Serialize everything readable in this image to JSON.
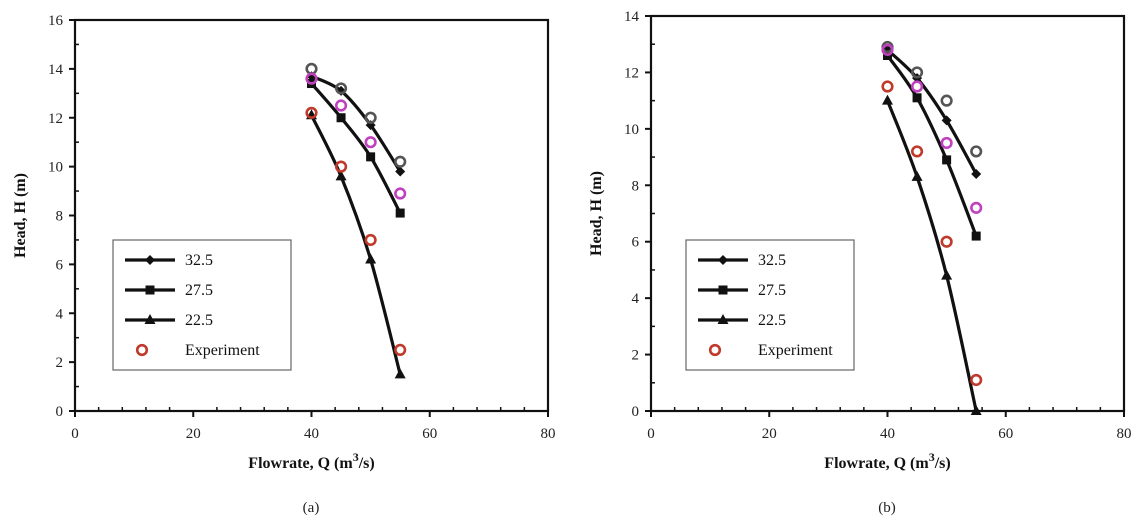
{
  "chart_data": [
    {
      "type": "line",
      "panel": "(a)",
      "xlabel": "Flowrate, Q (m",
      "xlabel_sup": "3",
      "xlabel_tail": "/s)",
      "ylabel": "Head, H (m)",
      "xlim": [
        0,
        80
      ],
      "ylim": [
        0,
        16
      ],
      "xticks": [
        0,
        20,
        40,
        60,
        80
      ],
      "yticks": [
        0,
        2,
        4,
        6,
        8,
        10,
        12,
        14,
        16
      ],
      "legend_position": "bottom-left",
      "series": [
        {
          "name": "32.5",
          "marker": "diamond",
          "color": "#111111",
          "x": [
            40,
            45,
            50,
            55
          ],
          "y": [
            13.7,
            13.1,
            11.7,
            9.8
          ]
        },
        {
          "name": "27.5",
          "marker": "square",
          "color": "#111111",
          "x": [
            40,
            45,
            50,
            55
          ],
          "y": [
            13.4,
            12.0,
            10.4,
            8.1
          ]
        },
        {
          "name": "22.5",
          "marker": "triangle",
          "color": "#111111",
          "x": [
            40,
            45,
            50,
            55
          ],
          "y": [
            12.1,
            9.6,
            6.2,
            1.5
          ]
        },
        {
          "name": "Experiment",
          "marker": "open-circle",
          "color": "#c0392b",
          "x": [
            40,
            45,
            50,
            55
          ],
          "y": [
            12.2,
            10.0,
            7.0,
            2.5
          ]
        }
      ],
      "extra_points": [
        {
          "marker": "open-circle",
          "color": "#555555",
          "x": [
            40,
            45,
            50,
            55
          ],
          "y": [
            14.0,
            13.2,
            12.0,
            10.2
          ]
        },
        {
          "marker": "open-circle",
          "color": "#c040c0",
          "x": [
            40,
            45,
            50,
            55
          ],
          "y": [
            13.6,
            12.5,
            11.0,
            8.9
          ]
        }
      ]
    },
    {
      "type": "line",
      "panel": "(b)",
      "xlabel": "Flowrate, Q (m",
      "xlabel_sup": "3",
      "xlabel_tail": "/s)",
      "ylabel": "Head, H (m)",
      "xlim": [
        0,
        80
      ],
      "ylim": [
        0,
        14
      ],
      "xticks": [
        0,
        20,
        40,
        60,
        80
      ],
      "yticks": [
        0,
        2,
        4,
        6,
        8,
        10,
        12,
        14
      ],
      "legend_position": "bottom-left",
      "series": [
        {
          "name": "32.5",
          "marker": "diamond",
          "color": "#111111",
          "x": [
            40,
            45,
            50,
            55
          ],
          "y": [
            12.8,
            11.8,
            10.3,
            8.4
          ]
        },
        {
          "name": "27.5",
          "marker": "square",
          "color": "#111111",
          "x": [
            40,
            45,
            50,
            55
          ],
          "y": [
            12.6,
            11.1,
            8.9,
            6.2
          ]
        },
        {
          "name": "22.5",
          "marker": "triangle",
          "color": "#111111",
          "x": [
            40,
            45,
            50,
            55
          ],
          "y": [
            11.0,
            8.3,
            4.8,
            0.0
          ]
        },
        {
          "name": "Experiment",
          "marker": "open-circle",
          "color": "#c0392b",
          "x": [
            40,
            45,
            50,
            55
          ],
          "y": [
            11.5,
            9.2,
            6.0,
            1.1
          ]
        }
      ],
      "extra_points": [
        {
          "marker": "open-circle",
          "color": "#555555",
          "x": [
            40,
            45,
            50,
            55
          ],
          "y": [
            12.9,
            12.0,
            11.0,
            9.2
          ]
        },
        {
          "marker": "open-circle",
          "color": "#c040c0",
          "x": [
            40,
            45,
            50,
            55
          ],
          "y": [
            12.8,
            11.5,
            9.5,
            7.2
          ]
        }
      ]
    }
  ]
}
